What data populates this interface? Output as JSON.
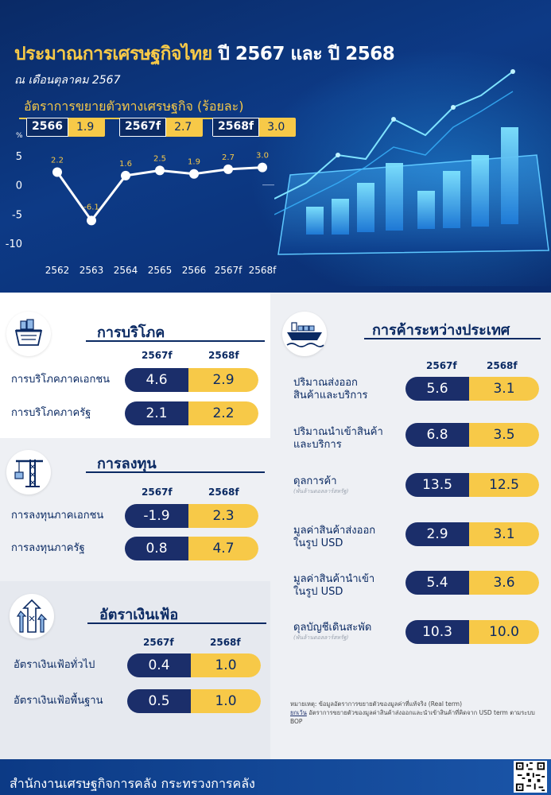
{
  "header": {
    "title_main": "ประมาณการเศรษฐกิจไทย",
    "title_years": "ปี 2567 และ ปี 2568",
    "subtitle": "ณ เดือนตุลาคม 2567",
    "growth_heading": "อัตราการขยายตัวทางเศรษฐกิจ (ร้อยละ)",
    "growth_boxes": [
      {
        "year": "2566",
        "value": "1.9"
      },
      {
        "year": "2567f",
        "value": "2.7"
      },
      {
        "year": "2568f",
        "value": "3.0"
      }
    ]
  },
  "chart_data": {
    "type": "line",
    "title": "อัตราการขยายตัวทางเศรษฐกิจ (ร้อยละ)",
    "ylabel": "%",
    "categories": [
      "2562",
      "2563",
      "2564",
      "2565",
      "2566",
      "2567f",
      "2568f"
    ],
    "values": [
      2.2,
      -6.1,
      1.6,
      2.5,
      1.9,
      2.7,
      3.0
    ],
    "data_labels": [
      "2.2",
      "-6.1",
      "1.6",
      "2.5",
      "1.9",
      "2.7",
      "3.0"
    ],
    "yticks": [
      "5",
      "0",
      "-5",
      "-10"
    ],
    "ylim": [
      -10,
      5
    ],
    "grid": false,
    "colors": {
      "line": "#ffffff",
      "labels": "#f7c948",
      "ticks": "#ffffff"
    }
  },
  "consumption": {
    "title": "การบริโภค",
    "col_2567": "2567f",
    "col_2568": "2568f",
    "rows": [
      {
        "label": "การบริโภคภาคเอกชน",
        "v2567": "4.6",
        "v2568": "2.9"
      },
      {
        "label": "การบริโภคภาครัฐ",
        "v2567": "2.1",
        "v2568": "2.2"
      }
    ]
  },
  "investment": {
    "title": "การลงทุน",
    "col_2567": "2567f",
    "col_2568": "2568f",
    "rows": [
      {
        "label": "การลงทุนภาคเอกชน",
        "v2567": "-1.9",
        "v2568": "2.3"
      },
      {
        "label": "การลงทุนภาครัฐ",
        "v2567": "0.8",
        "v2568": "4.7"
      }
    ]
  },
  "inflation": {
    "title": "อัตราเงินเฟ้อ",
    "col_2567": "2567f",
    "col_2568": "2568f",
    "rows": [
      {
        "label": "อัตราเงินเฟ้อทั่วไป",
        "v2567": "0.4",
        "v2568": "1.0"
      },
      {
        "label": "อัตราเงินเฟ้อพื้นฐาน",
        "v2567": "0.5",
        "v2568": "1.0"
      }
    ]
  },
  "trade": {
    "title": "การค้าระหว่างประเทศ",
    "col_2567": "2567f",
    "col_2568": "2568f",
    "rows": [
      {
        "label1": "ปริมาณส่งออก",
        "label2": "สินค้าและบริการ",
        "note": "",
        "v2567": "5.6",
        "v2568": "3.1"
      },
      {
        "label1": "ปริมาณนำเข้าสินค้า",
        "label2": "และบริการ",
        "note": "",
        "v2567": "6.8",
        "v2568": "3.5"
      },
      {
        "label1": "ดุลการค้า",
        "label2": "",
        "note": "(พันล้านดอลลาร์สหรัฐ)",
        "v2567": "13.5",
        "v2568": "12.5"
      },
      {
        "label1": "มูลค่าสินค้าส่งออก",
        "label2": "ในรูป USD",
        "note": "",
        "v2567": "2.9",
        "v2568": "3.1"
      },
      {
        "label1": "มูลค่าสินค้านำเข้า",
        "label2": "ในรูป USD",
        "note": "",
        "v2567": "5.4",
        "v2568": "3.6"
      },
      {
        "label1": "ดุลบัญชีเดินสะพัด",
        "label2": "",
        "note": "(พันล้านดอลลาร์สหรัฐ)",
        "v2567": "10.3",
        "v2568": "10.0"
      }
    ]
  },
  "notes": {
    "line1": "หมายเหตุ: ข้อมูลอัตราการขยายตัวของมูลค่าที่แท้จริง (Real term)",
    "line2_prefix": "ยกเว้น",
    "line2": " อัตราการขยายตัวของมูลค่าสินค้าส่งออกและนำเข้าสินค้าที่คิดจาก USD term ตามระบบ BOP"
  },
  "footer": {
    "text": "สำนักงานเศรษฐกิจการคลัง กระทรวงการคลัง"
  },
  "icons": {
    "consumption": "basket-icon",
    "investment": "crane-icon",
    "inflation": "price-arrows-icon",
    "trade": "cargo-ship-icon",
    "qr": "qr-code-icon"
  },
  "colors": {
    "navy": "#0b2a63",
    "accent_yellow": "#f7c948",
    "pill_dark": "#1b2e6a",
    "panel_gray": "#eef0f4"
  }
}
